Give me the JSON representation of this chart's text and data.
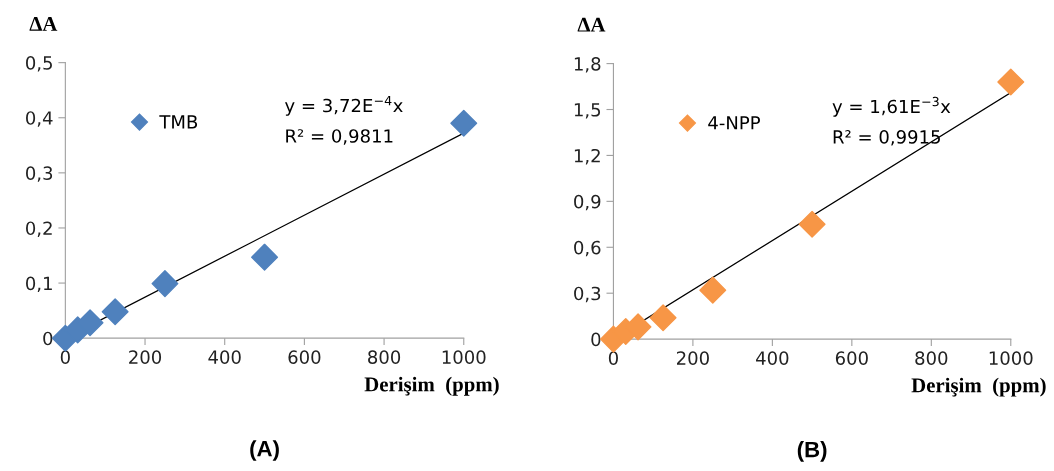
{
  "chart_data": [
    {
      "type": "scatter",
      "ylabel": "ΔA",
      "xlabel": "Derişim  (ppm)",
      "legend": "top left",
      "grid": false,
      "xlim": [
        0,
        1000
      ],
      "xticks": [
        0,
        200,
        400,
        600,
        800,
        1000
      ],
      "ylim": [
        0,
        0.5
      ],
      "yticks": [
        0,
        {
          "value": 0.1,
          "label": "0,1"
        },
        {
          "value": 0.2,
          "label": "0,2"
        },
        {
          "value": 0.3,
          "label": "0,3"
        },
        {
          "value": 0.4,
          "label": "0,4"
        },
        {
          "value": 0.5,
          "label": "0,5"
        }
      ],
      "series": [
        {
          "name": "TMB",
          "color": "#4f81bd",
          "marker": "diamond",
          "x": [
            0,
            31,
            62,
            125,
            250,
            500,
            1000
          ],
          "values": [
            0,
            0.015,
            0.028,
            0.048,
            0.099,
            0.147,
            0.39
          ]
        },
        {
          "type": "line",
          "color": "#000000",
          "x": [
            0,
            1000
          ],
          "values": [
            0,
            0.372
          ]
        }
      ],
      "annotations": [
        "y = 3,72E$^{−4}$x",
        "R² = 0,9811",
        "(A)"
      ]
    },
    {
      "type": "scatter",
      "ylabel": "ΔA",
      "xlabel": "Derişim  (ppm)",
      "legend": "top left",
      "grid": false,
      "xlim": [
        0,
        1000
      ],
      "xticks": [
        0,
        200,
        400,
        600,
        800,
        1000
      ],
      "ylim": [
        0,
        1.8
      ],
      "yticks": [
        0,
        {
          "value": 0.3,
          "label": "0,3"
        },
        {
          "value": 0.6,
          "label": "0,6"
        },
        {
          "value": 0.9,
          "label": "0,9"
        },
        {
          "value": 1.2,
          "label": "1,2"
        },
        {
          "value": 1.5,
          "label": "1,5"
        },
        {
          "value": 1.8,
          "label": "1,8"
        }
      ],
      "series": [
        {
          "name": "4-NPP",
          "color": "#f79646",
          "marker": "diamond",
          "x": [
            0,
            31,
            62,
            125,
            250,
            500,
            1000
          ],
          "values": [
            0,
            0.05,
            0.08,
            0.14,
            0.32,
            0.75,
            1.68
          ]
        },
        {
          "type": "line",
          "color": "#000000",
          "x": [
            0,
            1000
          ],
          "values": [
            0,
            1.61
          ]
        }
      ],
      "annotations": [
        "y = 1,61E$^{−3}$x",
        "R² = 0,9915",
        "(B)"
      ]
    }
  ]
}
